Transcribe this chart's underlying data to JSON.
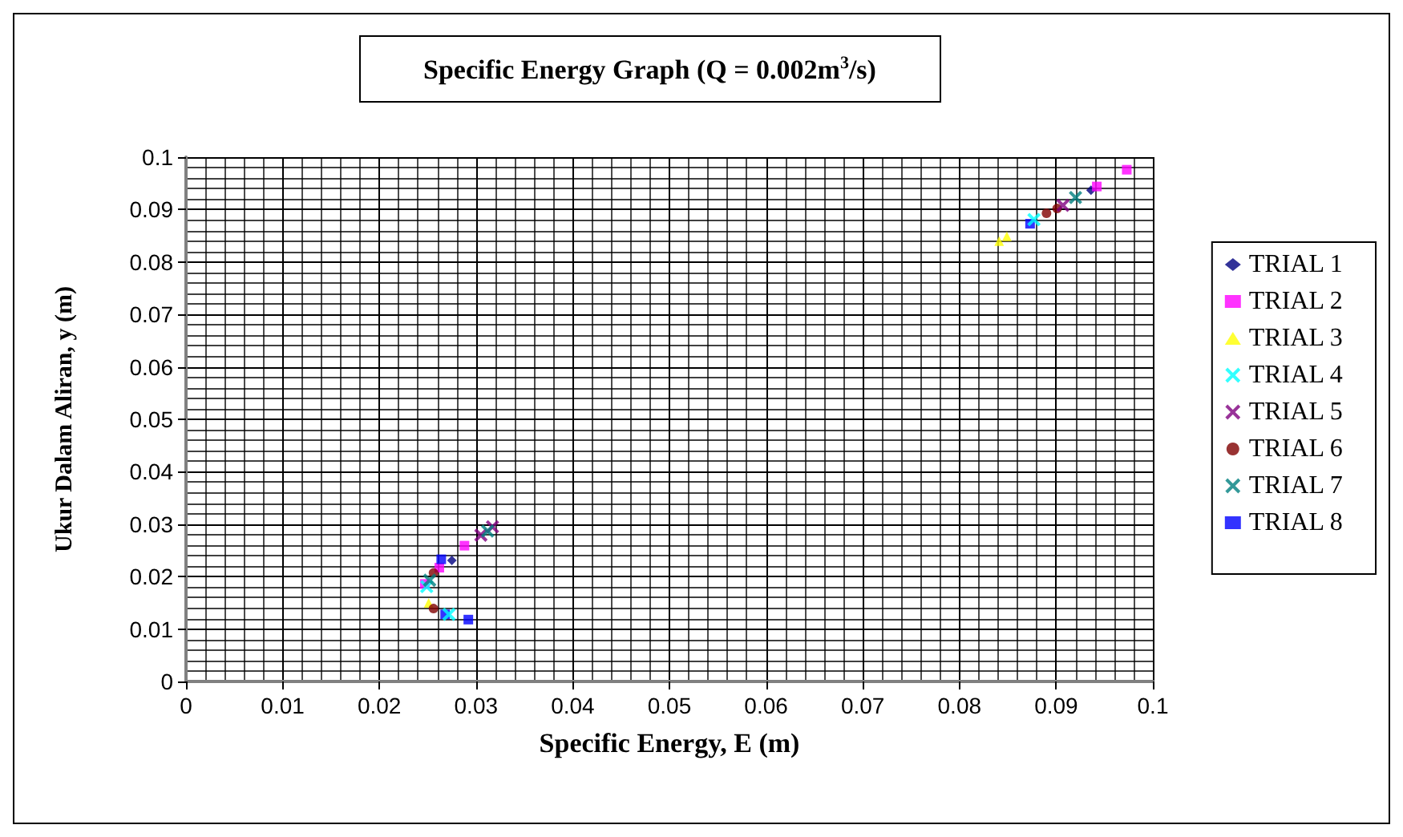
{
  "chart_data": {
    "type": "scatter",
    "title": "Specific Energy Graph (Q = 0.002m$^{3}$/s)",
    "xlabel": "Specific Energy, E (m)",
    "ylabel": "Ukur Dalam Aliran, y (m)",
    "xlim": [
      0,
      0.1
    ],
    "ylim": [
      0,
      0.1
    ],
    "xticks": [
      0,
      0.01,
      0.02,
      0.03,
      0.04,
      0.05,
      0.06,
      0.07,
      0.08,
      0.09,
      0.1
    ],
    "yticks": [
      0,
      0.01,
      0.02,
      0.03,
      0.04,
      0.05,
      0.06,
      0.07,
      0.08,
      0.09,
      0.1
    ],
    "grid": true,
    "legend": "right",
    "series": [
      {
        "name": "TRIAL 1",
        "color": "#000080",
        "marker": "diamond",
        "x": [
          0.0275,
          0.0936
        ],
        "values": [
          0.0231,
          0.0937
        ]
      },
      {
        "name": "TRIAL 2",
        "color": "#ff00ff",
        "marker": "square",
        "x": [
          0.0288,
          0.0262,
          0.0247,
          0.0973,
          0.0942
        ],
        "values": [
          0.0259,
          0.0217,
          0.0186,
          0.0976,
          0.0944
        ]
      },
      {
        "name": "TRIAL 3",
        "color": "#ffff00",
        "marker": "triangle",
        "x": [
          0.0251,
          0.0849,
          0.0841
        ],
        "values": [
          0.015,
          0.0849,
          0.084
        ]
      },
      {
        "name": "TRIAL 4",
        "color": "#00ffff",
        "marker": "cross",
        "x": [
          0.0249,
          0.0272,
          0.0877
        ],
        "values": [
          0.0181,
          0.0128,
          0.0881
        ]
      },
      {
        "name": "TRIAL 5",
        "color": "#800080",
        "marker": "cross",
        "x": [
          0.0317,
          0.0305,
          0.0907
        ],
        "values": [
          0.0295,
          0.0279,
          0.0908
        ]
      },
      {
        "name": "TRIAL 6",
        "color": "#800000",
        "marker": "circle",
        "x": [
          0.0256,
          0.0256,
          0.0901,
          0.089
        ],
        "values": [
          0.0207,
          0.0139,
          0.0902,
          0.0893
        ]
      },
      {
        "name": "TRIAL 7",
        "color": "#008080",
        "marker": "cross",
        "x": [
          0.0312,
          0.0252,
          0.092
        ],
        "values": [
          0.0287,
          0.0193,
          0.0923
        ]
      },
      {
        "name": "TRIAL 8",
        "color": "#0000ff",
        "marker": "square",
        "x": [
          0.0292,
          0.0268,
          0.0873
        ],
        "values": [
          0.0118,
          0.0128,
          0.0873
        ]
      },
      {
        "color": "#0000ff",
        "marker": "square",
        "x": [
          0.0264
        ],
        "values": [
          0.0233
        ]
      }
    ]
  }
}
